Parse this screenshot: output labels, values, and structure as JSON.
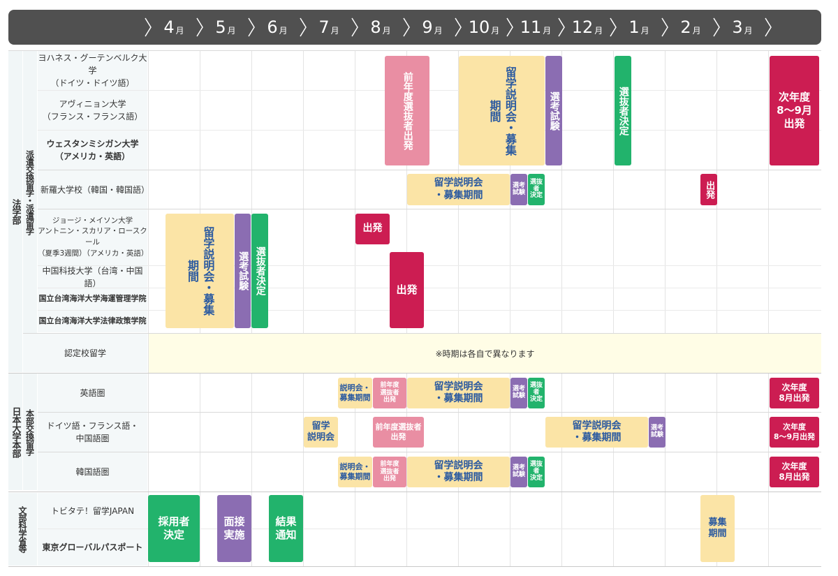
{
  "months": [
    {
      "num": "4",
      "unit": "月"
    },
    {
      "num": "5",
      "unit": "月"
    },
    {
      "num": "6",
      "unit": "月"
    },
    {
      "num": "7",
      "unit": "月"
    },
    {
      "num": "8",
      "unit": "月"
    },
    {
      "num": "9",
      "unit": "月"
    },
    {
      "num": "10",
      "unit": "月"
    },
    {
      "num": "11",
      "unit": "月"
    },
    {
      "num": "12",
      "unit": "月"
    },
    {
      "num": "1",
      "unit": "月"
    },
    {
      "num": "2",
      "unit": "月"
    },
    {
      "num": "3",
      "unit": "月"
    }
  ],
  "categories": {
    "faculty_law": "法学部",
    "dispatch": "派遣交換留学・派遣留学",
    "nihon_univ": "日本大学本部",
    "honbu_exchange": "本部交換留学",
    "mext": "文部科学省等"
  },
  "rows": {
    "johannes": "ヨハネス・グーテンベルク大学\n（ドイツ・ドイツ語）",
    "avignon": "アヴィニョン大学\n（フランス・フランス語）",
    "western_michigan": "ウェスタンミシガン大学\n（アメリカ・英語）",
    "shinra": "新羅大学校（韓国・韓国語）",
    "george_mason": "ジョージ・メイソン大学\nアントニン・スカリア・ロースクール\n（夏季3週間）（アメリカ・英語）",
    "china_tech": "中国科技大学（台湾・中国語）",
    "ntou_maritime": "国立台湾海洋大学海運管理学院",
    "ntou_law": "国立台湾海洋大学法律政策学院",
    "nintei": "認定校留学",
    "english": "英語圏",
    "german_french_chinese": "ドイツ語・フランス語・\n中国語圏",
    "korean": "韓国語圏",
    "tobitate": "トビタテ！留学JAPAN",
    "tokyo_global": "東京グローバルパスポート"
  },
  "events": {
    "zennen_senbatsu_v": "前年度選抜者出発",
    "setsumei_boshu_v": "留学説明会・募集期間",
    "senko_shiken_v": "選考試験",
    "senbatsu_kettei_v": "選抜者決定",
    "jinendo_8_9": "次年度\n8〜9月\n出発",
    "setsumei_boshu": "留学説明会\n・募集期間",
    "senko_shiken_small": "選考\n試験",
    "senbatsu_kettei_small": "選抜者\n決定",
    "shuppatsu_v": "出発",
    "shuppatsu": "出発",
    "nintei_note": "※時期は各自で異なります",
    "setsumeikai_boshu_small": "説明会・\n募集期間",
    "zennen_senbatsu_small": "前年度\n選抜者\n出発",
    "jinendo_8": "次年度\n8月出発",
    "ryugaku_setsumeikai": "留学\n説明会",
    "zennen_senbatsu_2line": "前年度選抜者\n出発",
    "senko_shiken_small2": "選考\n試験",
    "jinendo_8_9_small": "次年度\n8〜9月出発",
    "saiyo_kettei": "採用者\n決定",
    "mensetsu": "面接\n実施",
    "kekka": "結果\n通知",
    "boshu": "募集\n期間"
  },
  "colors": {
    "yellow": "#fbe4a6",
    "pink": "#e98ea3",
    "purple": "#8b6db2",
    "green": "#22b36c",
    "red": "#cc1d52",
    "header": "#505050"
  }
}
